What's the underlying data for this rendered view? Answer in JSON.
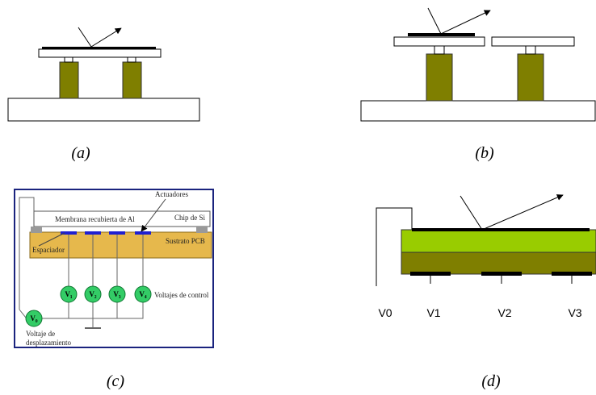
{
  "panels": {
    "a": {
      "label": "(a)"
    },
    "b": {
      "label": "(b)"
    },
    "c": {
      "label": "(c)",
      "actuators": "Actuadores",
      "membrane": "Membrana recubierta de Al",
      "chip": "Chip de Si",
      "spacer": "Espaciador",
      "substrate": "Sustrato PCB",
      "control_voltages": [
        "V₁",
        "V₂",
        "V₃",
        "V₄"
      ],
      "control_label": "Voltajes de control",
      "offset_voltage": "V₀",
      "offset_label": [
        "Voltaje de",
        "desplazamiento"
      ]
    },
    "d": {
      "label": "(d)",
      "voltages": [
        "V0",
        "V1",
        "V2",
        "V3"
      ]
    }
  }
}
